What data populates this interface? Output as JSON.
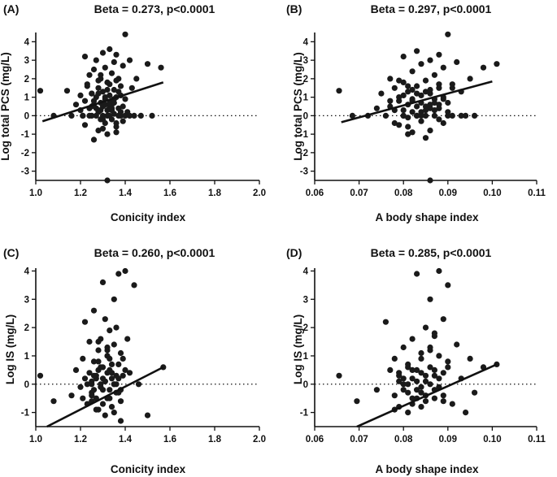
{
  "chart_data": [
    {
      "type": "scatter",
      "panel_label": "(A)",
      "title": "Beta = 0.273, p<0.0001",
      "xlabel": "Conicity index",
      "ylabel": "Log total PCS (mg/L)",
      "xlim": [
        1.0,
        2.0
      ],
      "ylim": [
        -3.5,
        4.5
      ],
      "xticks": [
        1.0,
        1.2,
        1.4,
        1.6,
        1.8,
        2.0
      ],
      "xtick_labels": [
        "1.0",
        "1.2",
        "1.4",
        "1.6",
        "1.8",
        "2.0"
      ],
      "yticks": [
        -3,
        -2,
        -1,
        0,
        1,
        2,
        3,
        4
      ],
      "ytick_labels": [
        "-3",
        "-2",
        "-1",
        "0",
        "1",
        "2",
        "3",
        "4"
      ],
      "reference_y": 0,
      "fit_line": [
        [
          1.03,
          -0.3
        ],
        [
          1.57,
          1.8
        ]
      ],
      "x": [
        1.02,
        1.08,
        1.14,
        1.16,
        1.18,
        1.2,
        1.2,
        1.21,
        1.22,
        1.22,
        1.23,
        1.24,
        1.24,
        1.25,
        1.25,
        1.26,
        1.26,
        1.27,
        1.27,
        1.28,
        1.28,
        1.28,
        1.29,
        1.29,
        1.3,
        1.3,
        1.3,
        1.31,
        1.31,
        1.31,
        1.32,
        1.32,
        1.32,
        1.33,
        1.33,
        1.33,
        1.34,
        1.34,
        1.34,
        1.35,
        1.35,
        1.35,
        1.36,
        1.36,
        1.36,
        1.37,
        1.37,
        1.38,
        1.38,
        1.39,
        1.39,
        1.4,
        1.4,
        1.41,
        1.42,
        1.43,
        1.44,
        1.45,
        1.47,
        1.5,
        1.52,
        1.56,
        1.22,
        1.24,
        1.26,
        1.28,
        1.3,
        1.32,
        1.34,
        1.36,
        1.38,
        1.4,
        1.25,
        1.27,
        1.29,
        1.31,
        1.33,
        1.35,
        1.37,
        1.39,
        1.21,
        1.23,
        1.26,
        1.28,
        1.3,
        1.32,
        1.34,
        1.36,
        1.38,
        1.42,
        1.29,
        1.33,
        1.27,
        1.31,
        1.35,
        1.3,
        1.34,
        1.36,
        1.25,
        1.32,
        1.28,
        1.37,
        1.33,
        1.29
      ],
      "y": [
        1.35,
        0.0,
        1.35,
        0.0,
        0.6,
        0.3,
        1.1,
        0.0,
        0.8,
        3.2,
        1.7,
        0.4,
        2.2,
        0.0,
        1.2,
        0.6,
        2.5,
        1.0,
        3.0,
        0.2,
        1.5,
        -0.8,
        0.7,
        2.0,
        0.0,
        1.3,
        3.4,
        -0.4,
        0.9,
        2.6,
        0.3,
        1.8,
        -1.0,
        0.5,
        1.1,
        3.6,
        -0.2,
        0.8,
        2.3,
        0.1,
        1.4,
        2.9,
        -0.6,
        1.0,
        3.3,
        0.4,
        2.0,
        0.0,
        1.6,
        -0.3,
        2.7,
        0.9,
        4.4,
        0.2,
        3.0,
        1.5,
        0.0,
        2.0,
        0.0,
        2.8,
        0.0,
        2.6,
        -0.5,
        0.0,
        -1.3,
        0.3,
        -0.7,
        0.0,
        0.6,
        -0.9,
        0.2,
        0.0,
        1.2,
        0.4,
        -0.2,
        1.0,
        0.0,
        0.7,
        1.3,
        0.5,
        0.0,
        1.6,
        0.8,
        1.9,
        0.5,
        1.4,
        0.3,
        1.9,
        1.1,
        0.0,
        2.2,
        1.7,
        0.0,
        0.6,
        0.9,
        -0.2,
        0.4,
        -0.4,
        0.5,
        -3.5,
        1.2,
        0.0,
        0.7,
        0.3
      ]
    },
    {
      "type": "scatter",
      "panel_label": "(B)",
      "title": "Beta = 0.297, p<0.0001",
      "xlabel": "A body shape index",
      "ylabel": "Log total PCS (mg/L)",
      "xlim": [
        0.06,
        0.11
      ],
      "ylim": [
        -3.5,
        4.5
      ],
      "xticks": [
        0.06,
        0.07,
        0.08,
        0.09,
        0.1,
        0.11
      ],
      "xtick_labels": [
        "0.06",
        "0.07",
        "0.08",
        "0.09",
        "0.10",
        "0.11"
      ],
      "yticks": [
        -3,
        -2,
        -1,
        0,
        1,
        2,
        3,
        4
      ],
      "ytick_labels": [
        "-3",
        "-2",
        "-1",
        "0",
        "1",
        "2",
        "3",
        "4"
      ],
      "reference_y": 0,
      "fit_line": [
        [
          0.066,
          -0.35
        ],
        [
          0.1,
          1.85
        ]
      ],
      "x": [
        0.0655,
        0.0685,
        0.072,
        0.074,
        0.075,
        0.076,
        0.077,
        0.077,
        0.078,
        0.078,
        0.079,
        0.079,
        0.08,
        0.08,
        0.08,
        0.081,
        0.081,
        0.081,
        0.082,
        0.082,
        0.082,
        0.083,
        0.083,
        0.083,
        0.084,
        0.084,
        0.084,
        0.085,
        0.085,
        0.085,
        0.086,
        0.086,
        0.086,
        0.087,
        0.087,
        0.087,
        0.088,
        0.088,
        0.088,
        0.089,
        0.089,
        0.09,
        0.09,
        0.091,
        0.091,
        0.092,
        0.093,
        0.094,
        0.095,
        0.096,
        0.098,
        0.101,
        0.078,
        0.08,
        0.082,
        0.084,
        0.086,
        0.088,
        0.09,
        0.079,
        0.081,
        0.083,
        0.085,
        0.087,
        0.089,
        0.08,
        0.082,
        0.084,
        0.086,
        0.088,
        0.091,
        0.093,
        0.077,
        0.083,
        0.085,
        0.087,
        0.081,
        0.084,
        0.086,
        0.089,
        0.079,
        0.082,
        0.085,
        0.088,
        0.08,
        0.083,
        0.086,
        0.09,
        0.081
      ],
      "y": [
        1.35,
        0.0,
        0.0,
        0.4,
        1.2,
        0.0,
        0.8,
        2.0,
        0.3,
        1.5,
        -0.5,
        1.0,
        0.0,
        1.8,
        3.2,
        0.6,
        1.3,
        -1.0,
        0.2,
        2.4,
        0.9,
        0.0,
        1.6,
        3.5,
        -0.3,
        1.1,
        2.8,
        0.5,
        1.9,
        0.0,
        1.4,
        3.0,
        -0.8,
        0.7,
        2.2,
        0.0,
        1.7,
        3.3,
        0.4,
        2.6,
        1.0,
        0.0,
        4.4,
        1.5,
        0.0,
        2.9,
        1.3,
        0.0,
        2.0,
        0.0,
        2.6,
        2.8,
        -0.4,
        0.3,
        -0.9,
        0.0,
        0.6,
        -0.2,
        0.2,
        0.8,
        -0.1,
        0.5,
        -1.2,
        0.3,
        0.9,
        1.1,
        1.4,
        0.7,
        1.2,
        0.6,
        1.7,
        0.0,
        0.5,
        0.0,
        1.3,
        0.9,
        1.6,
        0.2,
        0.4,
        -0.4,
        1.9,
        0.8,
        0.3,
        1.5,
        0.0,
        1.2,
        -3.5,
        0.7,
        -0.6
      ]
    },
    {
      "type": "scatter",
      "panel_label": "(C)",
      "title": "Beta = 0.260, p<0.0001",
      "xlabel": "Conicity index",
      "ylabel": "Log IS (mg/L)",
      "xlim": [
        1.0,
        2.0
      ],
      "ylim": [
        -1.5,
        4.1
      ],
      "xticks": [
        1.0,
        1.2,
        1.4,
        1.6,
        1.8,
        2.0
      ],
      "xtick_labels": [
        "1.0",
        "1.2",
        "1.4",
        "1.6",
        "1.8",
        "2.0"
      ],
      "yticks": [
        -1,
        0,
        1,
        2,
        3,
        4
      ],
      "ytick_labels": [
        "-1",
        "0",
        "1",
        "2",
        "3",
        "4"
      ],
      "reference_y": 0,
      "fit_line": [
        [
          1.05,
          -1.5
        ],
        [
          1.57,
          0.6
        ]
      ],
      "x": [
        1.02,
        1.08,
        1.16,
        1.18,
        1.2,
        1.21,
        1.22,
        1.22,
        1.23,
        1.24,
        1.25,
        1.25,
        1.26,
        1.26,
        1.27,
        1.27,
        1.28,
        1.28,
        1.29,
        1.29,
        1.3,
        1.3,
        1.31,
        1.31,
        1.32,
        1.32,
        1.33,
        1.33,
        1.34,
        1.34,
        1.35,
        1.35,
        1.36,
        1.36,
        1.37,
        1.37,
        1.38,
        1.38,
        1.39,
        1.4,
        1.41,
        1.42,
        1.44,
        1.46,
        1.5,
        1.57,
        1.23,
        1.25,
        1.27,
        1.29,
        1.31,
        1.33,
        1.35,
        1.37,
        1.24,
        1.26,
        1.28,
        1.3,
        1.32,
        1.34,
        1.36,
        1.38,
        1.4,
        1.25,
        1.29,
        1.33,
        1.37,
        1.27,
        1.31,
        1.35,
        1.21,
        1.3,
        1.34,
        1.28,
        1.32,
        1.36,
        1.26,
        1.33,
        1.39,
        1.3,
        1.28,
        1.35,
        1.32,
        1.25,
        1.38
      ],
      "y": [
        0.3,
        -0.6,
        -0.4,
        0.5,
        -0.1,
        0.9,
        2.2,
        0.2,
        -0.7,
        1.5,
        0.1,
        -0.3,
        0.8,
        2.6,
        -0.5,
        0.3,
        1.2,
        -0.9,
        0.0,
        1.6,
        -0.2,
        0.6,
        2.3,
        -1.1,
        0.4,
        1.0,
        -0.5,
        1.9,
        0.2,
        -0.8,
        1.4,
        0.0,
        2.0,
        -0.3,
        0.7,
        3.9,
        1.1,
        -0.6,
        0.3,
        4.0,
        1.6,
        0.4,
        3.5,
        0.0,
        -1.1,
        0.6,
        0.0,
        -0.4,
        0.2,
        -0.1,
        0.1,
        -0.2,
        0.0,
        -0.3,
        0.4,
        0.3,
        0.5,
        0.2,
        -0.5,
        0.4,
        0.0,
        -0.2,
        0.5,
        -0.6,
        0.6,
        0.9,
        0.2,
        -0.9,
        0.1,
        -1.0,
        -0.5,
        -0.7,
        0.7,
        0.8,
        1.2,
        0.3,
        -0.2,
        0.5,
        0.9,
        3.6,
        1.5,
        3.0,
        1.3,
        0.0,
        -1.3
      ]
    },
    {
      "type": "scatter",
      "panel_label": "(D)",
      "title": "Beta = 0.285, p<0.0001",
      "xlabel": "A body shape index",
      "ylabel": "Log IS (mg/L)",
      "xlim": [
        0.06,
        0.11
      ],
      "ylim": [
        -1.5,
        4.1
      ],
      "xticks": [
        0.06,
        0.07,
        0.08,
        0.09,
        0.1,
        0.11
      ],
      "xtick_labels": [
        "0.06",
        "0.07",
        "0.08",
        "0.09",
        "0.10",
        "0.11"
      ],
      "yticks": [
        -1,
        0,
        1,
        2,
        3,
        4
      ],
      "ytick_labels": [
        "-1",
        "0",
        "1",
        "2",
        "3",
        "4"
      ],
      "reference_y": 0,
      "fit_line": [
        [
          0.0695,
          -1.5
        ],
        [
          0.101,
          0.7
        ]
      ],
      "x": [
        0.0655,
        0.0695,
        0.074,
        0.076,
        0.077,
        0.078,
        0.078,
        0.079,
        0.079,
        0.08,
        0.08,
        0.081,
        0.081,
        0.081,
        0.082,
        0.082,
        0.083,
        0.083,
        0.084,
        0.084,
        0.084,
        0.085,
        0.085,
        0.086,
        0.086,
        0.087,
        0.087,
        0.087,
        0.088,
        0.088,
        0.089,
        0.089,
        0.09,
        0.09,
        0.091,
        0.092,
        0.093,
        0.094,
        0.095,
        0.096,
        0.098,
        0.101,
        0.079,
        0.081,
        0.083,
        0.085,
        0.087,
        0.089,
        0.08,
        0.082,
        0.084,
        0.086,
        0.088,
        0.09,
        0.078,
        0.083,
        0.085,
        0.087,
        0.081,
        0.084,
        0.086,
        0.089,
        0.082,
        0.085,
        0.088,
        0.08,
        0.083,
        0.086,
        0.079,
        0.084,
        0.087,
        0.082
      ],
      "y": [
        0.3,
        -0.6,
        -0.2,
        2.2,
        0.5,
        -0.4,
        0.9,
        0.1,
        -0.8,
        1.3,
        0.0,
        -0.3,
        0.7,
        -1.0,
        0.2,
        1.6,
        -0.5,
        3.9,
        0.4,
        -0.1,
        1.1,
        2.0,
        -0.6,
        0.6,
        3.0,
        -0.2,
        1.8,
        0.3,
        4.0,
        1.0,
        -0.4,
        2.3,
        0.6,
        3.5,
        -0.7,
        1.4,
        0.2,
        -1.0,
        0.9,
        -0.3,
        0.6,
        0.7,
        0.3,
        0.0,
        -0.2,
        0.1,
        -0.5,
        0.4,
        0.2,
        0.5,
        -0.3,
        0.0,
        -0.1,
        0.8,
        -0.9,
        0.1,
        -0.4,
        0.5,
        0.6,
        0.9,
        1.3,
        -0.6,
        -0.7,
        0.3,
        0.2,
        -0.2,
        0.5,
        1.2,
        0.4,
        -0.8,
        1.7,
        -0.5
      ]
    }
  ]
}
